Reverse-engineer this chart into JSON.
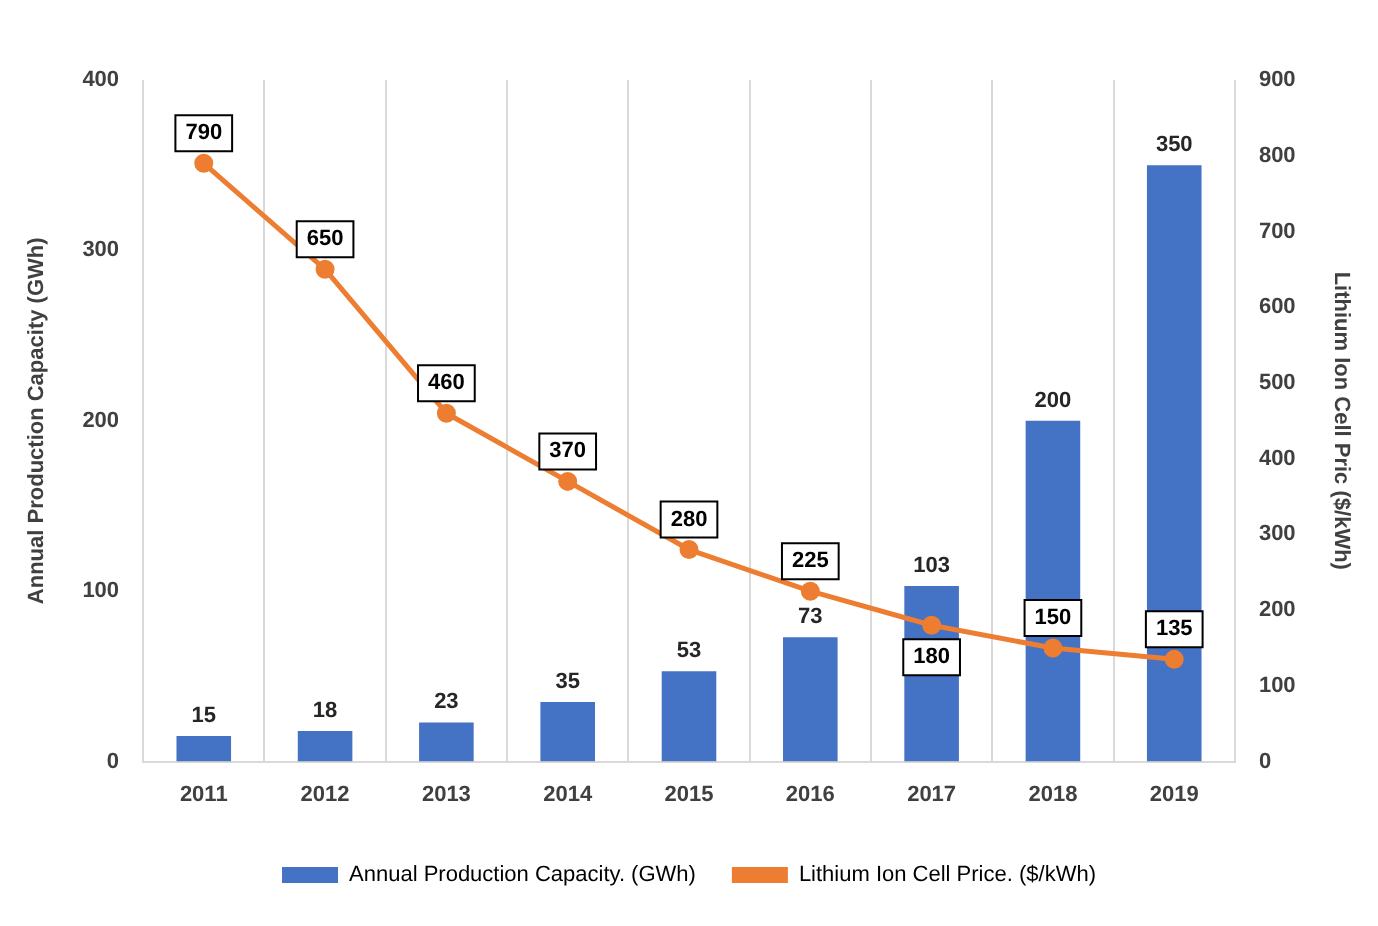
{
  "chart_data": {
    "type": "bar",
    "categories": [
      "2011",
      "2012",
      "2013",
      "2014",
      "2015",
      "2016",
      "2017",
      "2018",
      "2019"
    ],
    "series": [
      {
        "name": "Annual Production Capacity. (GWh)",
        "color": "#4472c4",
        "values": [
          15,
          18,
          23,
          35,
          53,
          73,
          103,
          200,
          350
        ]
      },
      {
        "name": "Lithium Ion Cell Price. ($/kWh)",
        "type": "line",
        "axis": "y2",
        "color": "#ed7d31",
        "marker": "circle",
        "values": [
          790,
          650,
          460,
          370,
          280,
          225,
          180,
          150,
          135
        ]
      }
    ],
    "ylabel": "Annual Production Capacity (GWh)",
    "y2label": "Lithium Ion Cell Pric ($/kWh)",
    "ylim": [
      0,
      400
    ],
    "yticks": [
      0,
      100,
      200,
      300,
      400
    ],
    "y2lim": [
      0,
      900
    ],
    "y2ticks": [
      0,
      100,
      200,
      300,
      400,
      500,
      600,
      700,
      800,
      900
    ],
    "grid": "x",
    "legend": "bottom",
    "data_labels": true
  }
}
